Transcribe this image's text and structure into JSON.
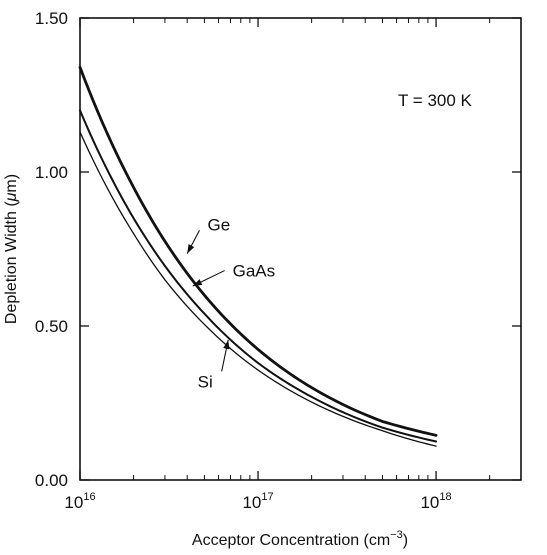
{
  "chart_data": {
    "type": "line",
    "title": "",
    "xlabel": "Acceptor Concentration (cm",
    "xlabel_sup": "−3",
    "xlabel_close": ")",
    "ylabel_pre": "Depletion Width (",
    "ylabel_mu": "μ",
    "ylabel_post": "m)",
    "x_scale": "log",
    "xlim": [
      1e+16,
      3e+18
    ],
    "ylim": [
      0,
      1.5
    ],
    "x_ticks": [
      {
        "base": "10",
        "exp": "16",
        "value": 1e+16
      },
      {
        "base": "10",
        "exp": "17",
        "value": 1e+17
      },
      {
        "base": "10",
        "exp": "18",
        "value": 1e+18
      }
    ],
    "y_ticks": [
      {
        "label": "0.00",
        "value": 0.0
      },
      {
        "label": "0.50",
        "value": 0.5
      },
      {
        "label": "1.00",
        "value": 1.0
      },
      {
        "label": "1.50",
        "value": 1.5
      }
    ],
    "annotation": "T = 300 K",
    "grid": false,
    "legend": "none",
    "series": [
      {
        "name": "Ge",
        "x": [
          1e+16,
          2e+16,
          3e+16,
          5e+16,
          1e+17,
          2e+17,
          5e+17,
          1e+18
        ],
        "values": [
          1.34,
          0.95,
          0.775,
          0.6,
          0.424,
          0.3,
          0.19,
          0.145
        ],
        "stroke_width": 2.8
      },
      {
        "name": "GaAs",
        "x": [
          1e+16,
          2e+16,
          3e+16,
          5e+16,
          1e+17,
          2e+17,
          5e+17,
          1e+18
        ],
        "values": [
          1.2,
          0.85,
          0.695,
          0.54,
          0.38,
          0.27,
          0.17,
          0.125
        ],
        "stroke_width": 2.0
      },
      {
        "name": "Si",
        "x": [
          1e+16,
          2e+16,
          3e+16,
          5e+16,
          1e+17,
          2e+17,
          5e+17,
          1e+18
        ],
        "values": [
          1.13,
          0.8,
          0.65,
          0.505,
          0.357,
          0.253,
          0.16,
          0.11
        ],
        "stroke_width": 1.3
      }
    ],
    "labels": [
      {
        "text": "Ge",
        "series": "Ge",
        "point_x": 4e+16,
        "point_y": 0.735,
        "text_x": 5.2e+16,
        "text_y": 0.83
      },
      {
        "text": "GaAs",
        "series": "GaAs",
        "point_x": 4.3e+16,
        "point_y": 0.63,
        "text_x": 7.2e+16,
        "text_y": 0.68
      },
      {
        "text": "Si",
        "series": "Si",
        "point_x": 6.8e+16,
        "point_y": 0.455,
        "text_x": 4.7e+16,
        "text_y": 0.32
      }
    ]
  }
}
